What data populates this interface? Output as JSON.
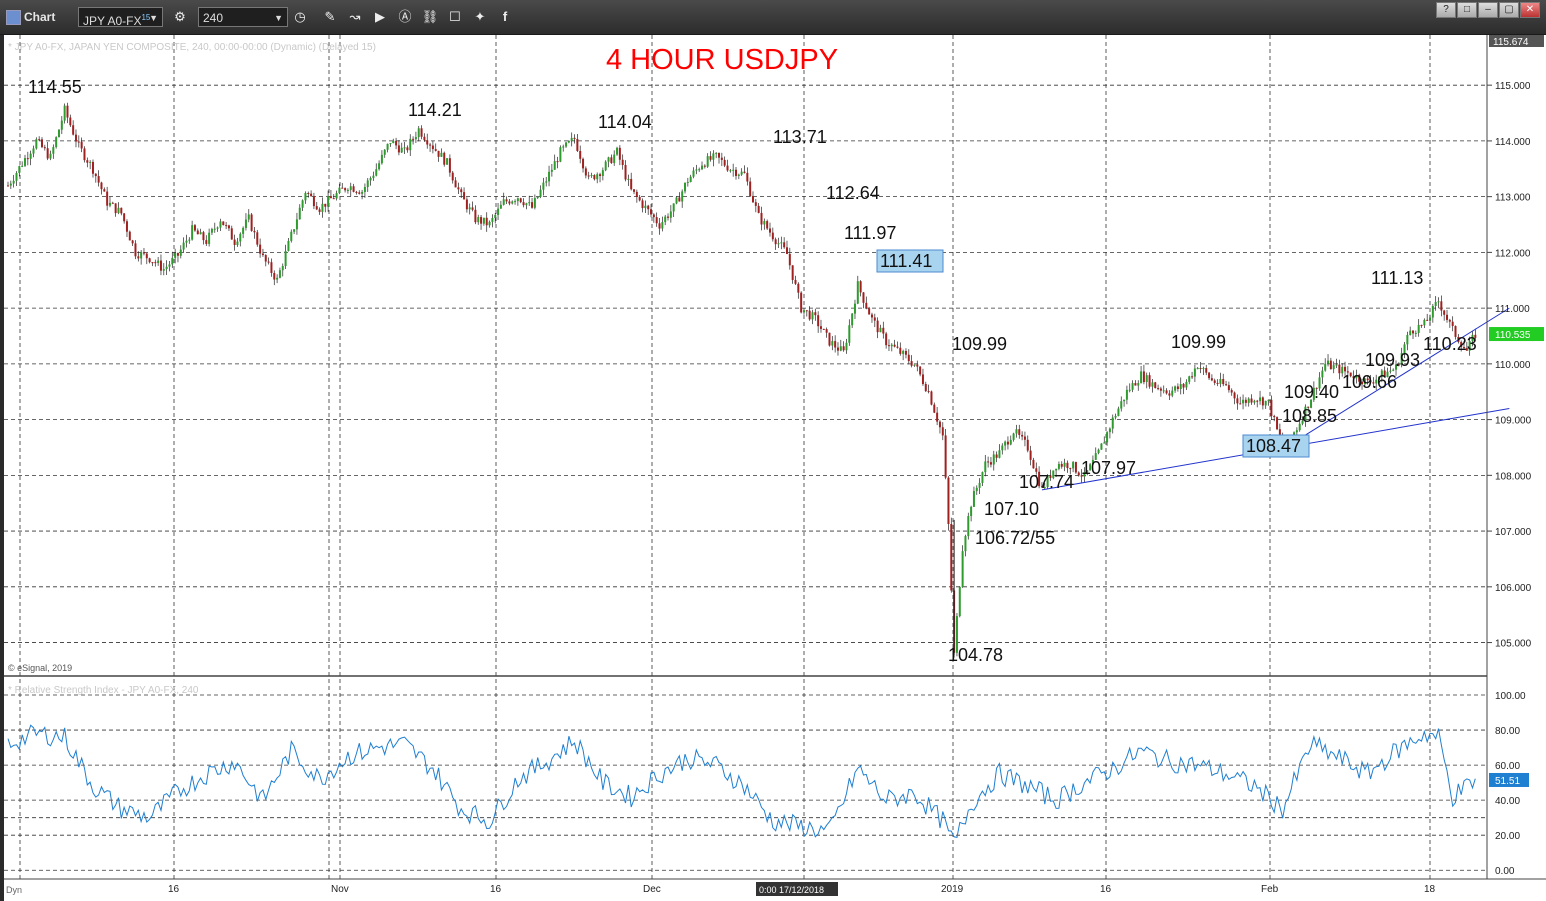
{
  "window": {
    "title": "Chart",
    "symbol": "JPY A0-FX",
    "symbol_badge": "15",
    "interval": "240",
    "buttons": [
      "?",
      "□",
      "–",
      "▢",
      "✕"
    ]
  },
  "chart_data": {
    "type": "candlestick",
    "title": "4 HOUR USDJPY",
    "subtitle": "* JPY A0-FX, JAPAN YEN COMPOSITE, 240, 00:00-00:00 (Dynamic) (Delayed 15)",
    "copyright": "© eSignal, 2019",
    "y_range": [
      104.4,
      115.9
    ],
    "y_ticks": [
      "115.000",
      "114.000",
      "113.000",
      "112.000",
      "111.000",
      "110.000",
      "109.000",
      "108.000",
      "107.000",
      "106.000",
      "105.000"
    ],
    "y_top_label": "115.674",
    "last_price_label": "110.535",
    "x_ticks": [
      "16",
      "Nov",
      "16",
      "Dec",
      "2019",
      "16",
      "Feb",
      "18"
    ],
    "cursor_time_label": "0:00 17/12/2018",
    "path_points": [
      [
        0,
        113.2
      ],
      [
        5,
        113.6
      ],
      [
        10,
        114.0
      ],
      [
        15,
        113.7
      ],
      [
        20,
        114.55
      ],
      [
        25,
        113.9
      ],
      [
        30,
        113.5
      ],
      [
        35,
        112.9
      ],
      [
        40,
        112.7
      ],
      [
        45,
        112.0
      ],
      [
        50,
        111.9
      ],
      [
        55,
        111.7
      ],
      [
        60,
        111.95
      ],
      [
        65,
        112.4
      ],
      [
        70,
        112.2
      ],
      [
        75,
        112.6
      ],
      [
        80,
        112.2
      ],
      [
        85,
        112.6
      ],
      [
        90,
        111.9
      ],
      [
        95,
        111.5
      ],
      [
        100,
        112.3
      ],
      [
        105,
        113.1
      ],
      [
        110,
        112.8
      ],
      [
        115,
        113.0
      ],
      [
        120,
        113.2
      ],
      [
        125,
        113.1
      ],
      [
        130,
        113.5
      ],
      [
        135,
        114.0
      ],
      [
        140,
        113.8
      ],
      [
        145,
        114.21
      ],
      [
        150,
        113.9
      ],
      [
        155,
        113.6
      ],
      [
        160,
        113.0
      ],
      [
        165,
        112.6
      ],
      [
        170,
        112.5
      ],
      [
        175,
        112.9
      ],
      [
        180,
        113.0
      ],
      [
        185,
        112.8
      ],
      [
        190,
        113.3
      ],
      [
        195,
        113.8
      ],
      [
        200,
        114.04
      ],
      [
        205,
        113.3
      ],
      [
        210,
        113.5
      ],
      [
        215,
        113.8
      ],
      [
        220,
        113.1
      ],
      [
        225,
        112.8
      ],
      [
        230,
        112.5
      ],
      [
        235,
        112.8
      ],
      [
        240,
        113.3
      ],
      [
        245,
        113.6
      ],
      [
        250,
        113.71
      ],
      [
        255,
        113.5
      ],
      [
        260,
        113.4
      ],
      [
        265,
        112.64
      ],
      [
        270,
        112.3
      ],
      [
        275,
        111.97
      ],
      [
        280,
        111.0
      ],
      [
        285,
        110.8
      ],
      [
        290,
        110.4
      ],
      [
        295,
        110.2
      ],
      [
        300,
        111.41
      ],
      [
        305,
        110.8
      ],
      [
        310,
        110.4
      ],
      [
        315,
        110.2
      ],
      [
        320,
        109.99
      ],
      [
        325,
        109.5
      ],
      [
        330,
        108.7
      ],
      [
        332,
        107.1
      ],
      [
        334,
        104.78
      ],
      [
        337,
        106.72
      ],
      [
        340,
        107.5
      ],
      [
        345,
        108.2
      ],
      [
        350,
        108.4
      ],
      [
        355,
        108.8
      ],
      [
        360,
        108.5
      ],
      [
        365,
        107.74
      ],
      [
        370,
        108.2
      ],
      [
        375,
        108.2
      ],
      [
        380,
        107.97
      ],
      [
        385,
        108.4
      ],
      [
        390,
        109.0
      ],
      [
        395,
        109.5
      ],
      [
        400,
        109.8
      ],
      [
        405,
        109.6
      ],
      [
        410,
        109.5
      ],
      [
        415,
        109.6
      ],
      [
        420,
        109.99
      ],
      [
        425,
        109.7
      ],
      [
        430,
        109.6
      ],
      [
        435,
        109.3
      ],
      [
        440,
        109.4
      ],
      [
        445,
        109.3
      ],
      [
        450,
        108.47
      ],
      [
        455,
        108.85
      ],
      [
        460,
        109.4
      ],
      [
        465,
        110.0
      ],
      [
        470,
        109.9
      ],
      [
        475,
        109.8
      ],
      [
        480,
        109.66
      ],
      [
        485,
        109.8
      ],
      [
        490,
        109.93
      ],
      [
        495,
        110.6
      ],
      [
        500,
        110.7
      ],
      [
        505,
        111.13
      ],
      [
        510,
        110.6
      ],
      [
        515,
        110.23
      ],
      [
        518,
        110.535
      ]
    ],
    "annotations": [
      {
        "label": "114.55",
        "highlight": false
      },
      {
        "label": "114.21",
        "highlight": false
      },
      {
        "label": "114.04",
        "highlight": false
      },
      {
        "label": "113.71",
        "highlight": false
      },
      {
        "label": "112.64",
        "highlight": false
      },
      {
        "label": "111.97",
        "highlight": false
      },
      {
        "label": "111.41",
        "highlight": true
      },
      {
        "label": "109.99",
        "highlight": false
      },
      {
        "label": "107.10",
        "highlight": false
      },
      {
        "label": "106.72/55",
        "highlight": false
      },
      {
        "label": "104.78",
        "highlight": false
      },
      {
        "label": "107.74",
        "highlight": false
      },
      {
        "label": "107.97",
        "highlight": false
      },
      {
        "label": "109.99",
        "highlight": false
      },
      {
        "label": "109.40",
        "highlight": false
      },
      {
        "label": "108.85",
        "highlight": false
      },
      {
        "label": "108.47",
        "highlight": true
      },
      {
        "label": "109.66",
        "highlight": false
      },
      {
        "label": "109.93",
        "highlight": false
      },
      {
        "label": "111.13",
        "highlight": false
      },
      {
        "label": "110.23",
        "highlight": false
      }
    ],
    "trendlines": [
      {
        "from": [
          365,
          107.74
        ],
        "to": [
          530,
          109.2
        ]
      },
      {
        "from": [
          450,
          108.47
        ],
        "to": [
          530,
          111.0
        ]
      }
    ],
    "rsi": {
      "subtitle": "* Relative Strength Index - JPY A0-FX, 240",
      "y_range": [
        -5,
        108
      ],
      "y_ticks": [
        "100.00",
        "80.00",
        "60.00",
        "40.00",
        "20.00",
        "0.00"
      ],
      "last_label": "51.51",
      "points": [
        [
          0,
          72
        ],
        [
          10,
          78
        ],
        [
          20,
          76
        ],
        [
          30,
          48
        ],
        [
          40,
          35
        ],
        [
          50,
          30
        ],
        [
          60,
          45
        ],
        [
          70,
          55
        ],
        [
          80,
          62
        ],
        [
          90,
          40
        ],
        [
          100,
          68
        ],
        [
          110,
          52
        ],
        [
          120,
          65
        ],
        [
          130,
          70
        ],
        [
          140,
          72
        ],
        [
          150,
          58
        ],
        [
          160,
          35
        ],
        [
          170,
          28
        ],
        [
          180,
          52
        ],
        [
          190,
          62
        ],
        [
          200,
          74
        ],
        [
          210,
          50
        ],
        [
          220,
          42
        ],
        [
          230,
          55
        ],
        [
          240,
          64
        ],
        [
          250,
          60
        ],
        [
          260,
          48
        ],
        [
          270,
          28
        ],
        [
          280,
          25
        ],
        [
          290,
          22
        ],
        [
          300,
          58
        ],
        [
          310,
          40
        ],
        [
          320,
          44
        ],
        [
          330,
          28
        ],
        [
          334,
          15
        ],
        [
          340,
          38
        ],
        [
          350,
          55
        ],
        [
          360,
          48
        ],
        [
          370,
          40
        ],
        [
          380,
          50
        ],
        [
          390,
          58
        ],
        [
          400,
          68
        ],
        [
          410,
          62
        ],
        [
          420,
          60
        ],
        [
          430,
          55
        ],
        [
          440,
          48
        ],
        [
          450,
          35
        ],
        [
          460,
          72
        ],
        [
          470,
          64
        ],
        [
          480,
          55
        ],
        [
          490,
          68
        ],
        [
          500,
          78
        ],
        [
          505,
          76
        ],
        [
          510,
          42
        ],
        [
          518,
          51.51
        ]
      ]
    },
    "colors": {
      "up": "#2e9b2e",
      "down": "#a02020",
      "line": "#1f7fd0",
      "trend": "#2233cc",
      "title": "#ff0000",
      "highlight": "#a9d4f0",
      "last_price": "#22cc22"
    }
  }
}
